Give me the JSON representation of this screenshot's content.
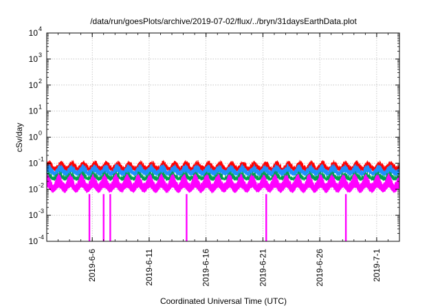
{
  "chart_data": {
    "type": "line",
    "title": "/data/run/goesPlots/archive/2019-07-02/flux/../bryn/31daysEarthData.plot",
    "xlabel": "Coordinated Universal Time (UTC)",
    "ylabel": "cSv/day",
    "yscale": "log",
    "ylim": [
      0.0001,
      10000
    ],
    "xlim": [
      "2019-06-02",
      "2019-07-03"
    ],
    "grid": true,
    "x_ticks": [
      "2019-6-6",
      "2019-6-11",
      "2019-6-16",
      "2019-6-21",
      "2019-6-26",
      "2019-7-1"
    ],
    "y_ticks": [
      {
        "base": "10",
        "exp": "-4"
      },
      {
        "base": "10",
        "exp": "-3"
      },
      {
        "base": "10",
        "exp": "-2"
      },
      {
        "base": "10",
        "exp": "-1"
      },
      {
        "base": "10",
        "exp": "0"
      },
      {
        "base": "10",
        "exp": "1"
      },
      {
        "base": "10",
        "exp": "2"
      },
      {
        "base": "10",
        "exp": "3"
      },
      {
        "base": "10",
        "exp": "4"
      }
    ],
    "series": [
      {
        "color": "#ff0000",
        "min": 0.045,
        "max": 0.13
      },
      {
        "color": "#1e90ff",
        "min": 0.03,
        "max": 0.095
      },
      {
        "color": "#00a050",
        "min": 0.02,
        "max": 0.05
      },
      {
        "color": "#ff00ff",
        "min": 0.0065,
        "max": 0.04
      }
    ],
    "dropouts": [
      "2019-06-05T18:00",
      "2019-06-07T00:00",
      "2019-06-07T14:00",
      "2019-06-14T07:00",
      "2019-06-21T07:00",
      "2019-06-28T07:00"
    ]
  }
}
